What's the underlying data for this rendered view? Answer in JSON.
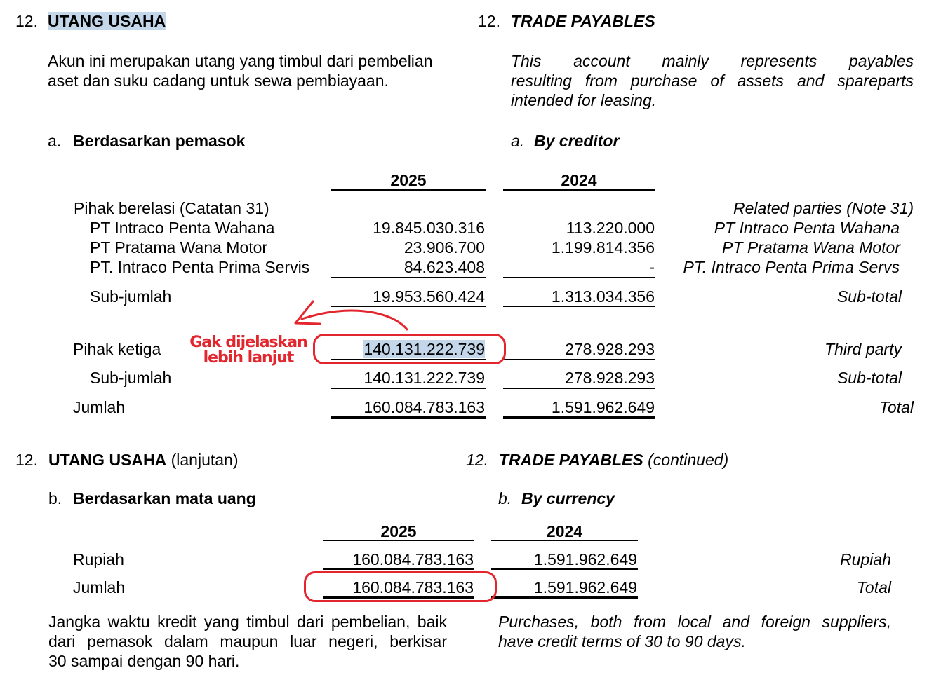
{
  "section_a": {
    "number": "12.",
    "title_id": "UTANG USAHA",
    "title_en": "TRADE PAYABLES",
    "desc_id_line1": "Akun ini merupakan utang yang timbul dari pembelian",
    "desc_id_line2": "aset dan suku cadang untuk sewa pembiayaan.",
    "desc_en_line1": "This account mainly represents payables",
    "desc_en_line2": "resulting from purchase of assets and spareparts",
    "desc_en_line3": "intended for leasing.",
    "sub_letter": "a.",
    "sub_title_id": "Berdasarkan pemasok",
    "sub_title_en": "By creditor",
    "col_2025": "2025",
    "col_2024": "2024",
    "rows": [
      {
        "label_id": "Pihak berelasi (Catatan 31)",
        "v2025": "",
        "v2024": "",
        "label_en": "Related parties (Note 31)"
      },
      {
        "label_id": "PT Intraco Penta Wahana",
        "v2025": "19.845.030.316",
        "v2024": "113.220.000",
        "label_en": "PT Intraco Penta Wahana"
      },
      {
        "label_id": "PT Pratama Wana Motor",
        "v2025": "23.906.700",
        "v2024": "1.199.814.356",
        "label_en": "PT Pratama Wana Motor"
      },
      {
        "label_id": "PT. Intraco Penta Prima Servis",
        "v2025": "84.623.408",
        "v2024": "-",
        "label_en": "PT. Intraco Penta Prima Servs"
      },
      {
        "label_id": "Sub-jumlah",
        "v2025": "19.953.560.424",
        "v2024": "1.313.034.356",
        "label_en": "Sub-total"
      },
      {
        "label_id": "Pihak ketiga",
        "v2025": "140.131.222.739",
        "v2024": "278.928.293",
        "label_en": "Third party"
      },
      {
        "label_id": "Sub-jumlah",
        "v2025": "140.131.222.739",
        "v2024": "278.928.293",
        "label_en": "Sub-total"
      },
      {
        "label_id": "Jumlah",
        "v2025": "160.084.783.163",
        "v2024": "1.591.962.649",
        "label_en": "Total"
      }
    ]
  },
  "annotation": {
    "line1": "Gak dijelaskan",
    "line2": "lebih lanjut",
    "color": "#e3262e"
  },
  "section_b": {
    "number": "12.",
    "title_id": "UTANG USAHA",
    "title_id_suffix": "(lanjutan)",
    "title_en": "TRADE PAYABLES",
    "title_en_suffix": "(continued)",
    "sub_letter": "b.",
    "sub_title_id": "Berdasarkan mata uang",
    "sub_title_en": "By currency",
    "col_2025": "2025",
    "col_2024": "2024",
    "rows": [
      {
        "label_id": "Rupiah",
        "v2025": "160.084.783.163",
        "v2024": "1.591.962.649",
        "label_en": "Rupiah"
      },
      {
        "label_id": "Jumlah",
        "v2025": "160.084.783.163",
        "v2024": "1.591.962.649",
        "label_en": "Total"
      }
    ],
    "note_id_line1": "Jangka waktu kredit yang timbul dari pembelian, baik",
    "note_id_line2": "dari pemasok dalam maupun luar negeri, berkisar",
    "note_id_line3": "30 sampai dengan 90 hari.",
    "note_en_line1": "Purchases, both from local and foreign suppliers,",
    "note_en_line2": "have credit terms of 30 to 90 days."
  }
}
